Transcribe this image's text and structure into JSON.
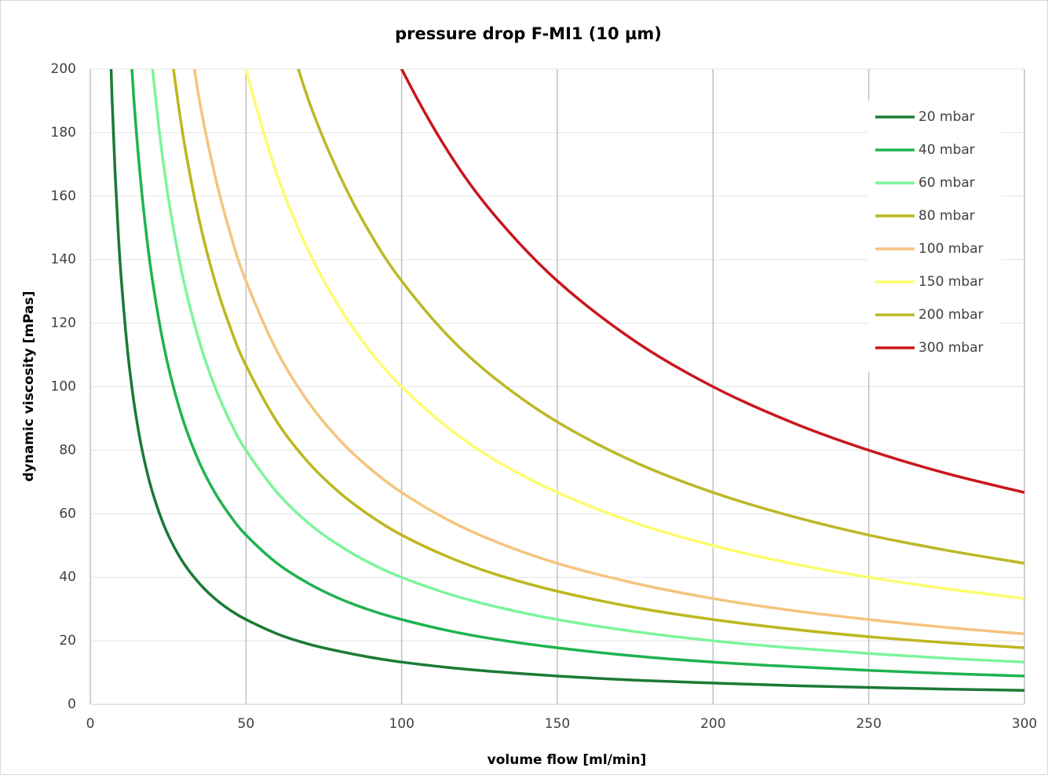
{
  "chart_data": {
    "type": "line",
    "title": "pressure drop F-MI1 (10 µm)",
    "xlabel": "volume flow [ml/min]",
    "ylabel": "dynamic viscosity [mPas]",
    "x": [
      5,
      6,
      7,
      8,
      9,
      10,
      12,
      14,
      16,
      18,
      20,
      23,
      26,
      30,
      35,
      40,
      45,
      50,
      60,
      70,
      80,
      90,
      100,
      115,
      130,
      150,
      175,
      200,
      225,
      250,
      275,
      300
    ],
    "series": [
      {
        "name": "20 mbar",
        "color": "#1b7a34",
        "values": [
          null,
          222.2,
          190.5,
          166.7,
          148.1,
          133.3,
          111.1,
          95.2,
          83.3,
          74.1,
          66.7,
          58.0,
          51.3,
          44.4,
          38.1,
          33.3,
          29.6,
          26.7,
          22.2,
          19.0,
          16.7,
          14.8,
          13.3,
          11.6,
          10.3,
          8.9,
          7.6,
          6.7,
          5.9,
          5.3,
          4.8,
          4.4
        ]
      },
      {
        "name": "40 mbar",
        "color": "#1fb34f",
        "values": [
          null,
          null,
          null,
          null,
          null,
          null,
          222.2,
          190.5,
          166.7,
          148.1,
          133.3,
          115.9,
          102.6,
          88.9,
          76.2,
          66.7,
          59.3,
          53.3,
          44.4,
          38.1,
          33.3,
          29.6,
          26.7,
          23.2,
          20.5,
          17.8,
          15.2,
          13.3,
          11.9,
          10.7,
          9.7,
          8.9
        ]
      },
      {
        "name": "60 mbar",
        "color": "#7cf59a",
        "values": [
          null,
          null,
          null,
          null,
          null,
          null,
          null,
          null,
          null,
          222.2,
          200.0,
          173.9,
          153.8,
          133.3,
          114.3,
          100,
          88.9,
          80,
          66.7,
          57.1,
          50,
          44.4,
          40,
          34.8,
          30.8,
          26.7,
          22.9,
          20,
          17.8,
          16,
          14.5,
          13.3
        ]
      },
      {
        "name": "80 mbar",
        "color": "#bdb71e",
        "values": [
          null,
          null,
          null,
          null,
          null,
          null,
          null,
          null,
          null,
          null,
          null,
          null,
          205.1,
          177.8,
          152.4,
          133.3,
          118.5,
          106.7,
          88.9,
          76.2,
          66.7,
          59.3,
          53.3,
          46.4,
          41.0,
          35.6,
          30.5,
          26.7,
          23.7,
          21.3,
          19.4,
          17.8
        ]
      },
      {
        "name": "100 mbar",
        "color": "#f5c47e",
        "values": [
          null,
          null,
          null,
          null,
          null,
          null,
          null,
          null,
          null,
          null,
          null,
          null,
          null,
          222.2,
          190.5,
          166.7,
          148.1,
          133.3,
          111.1,
          95.2,
          83.3,
          74.1,
          66.7,
          58.0,
          51.3,
          44.4,
          38.1,
          33.3,
          29.6,
          26.7,
          24.2,
          22.2
        ]
      },
      {
        "name": "150 mbar",
        "color": "#fdfc6e",
        "values": [
          null,
          null,
          null,
          null,
          null,
          null,
          null,
          null,
          null,
          null,
          null,
          null,
          null,
          null,
          null,
          null,
          222.2,
          200,
          166.7,
          142.9,
          125,
          111.1,
          100,
          87.0,
          76.9,
          66.7,
          57.1,
          50,
          44.4,
          40,
          36.4,
          33.3
        ]
      },
      {
        "name": "200 mbar",
        "color": "#bcb826",
        "values": [
          null,
          null,
          null,
          null,
          null,
          null,
          null,
          null,
          null,
          null,
          null,
          null,
          null,
          null,
          null,
          null,
          null,
          null,
          222.2,
          190.5,
          166.7,
          148.1,
          133.3,
          115.9,
          102.6,
          88.9,
          76.2,
          66.7,
          59.3,
          53.3,
          48.5,
          44.4
        ]
      },
      {
        "name": "300 mbar",
        "color": "#c8161c",
        "values": [
          null,
          null,
          null,
          null,
          null,
          null,
          null,
          null,
          null,
          null,
          null,
          null,
          null,
          null,
          null,
          null,
          null,
          null,
          null,
          null,
          null,
          222.2,
          200,
          173.9,
          153.8,
          133.3,
          114.3,
          100,
          88.9,
          80,
          72.7,
          66.7
        ]
      }
    ],
    "xlim": [
      0,
      300
    ],
    "ylim": [
      0,
      200
    ],
    "xticks": [
      0,
      50,
      100,
      150,
      200,
      250,
      300
    ],
    "yticks": [
      0,
      20,
      40,
      60,
      80,
      100,
      120,
      140,
      160,
      180,
      200
    ],
    "grid": true,
    "legend": "upper right"
  }
}
